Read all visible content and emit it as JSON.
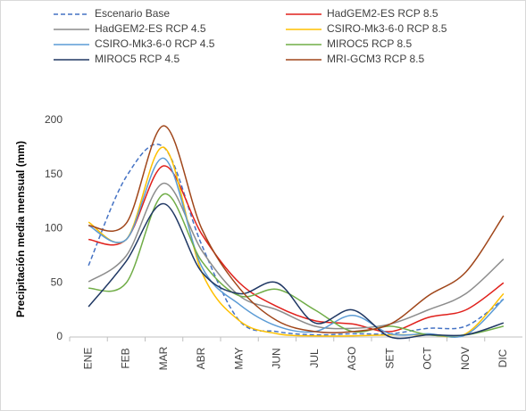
{
  "chart_data": {
    "type": "line",
    "y_label": "Precipitación media mensual (mm)",
    "categories": [
      "ENE",
      "FEB",
      "MAR",
      "ABR",
      "MAY",
      "JUN",
      "JUL",
      "AGO",
      "SET",
      "OCT",
      "NOV",
      "DIC"
    ],
    "ylim": [
      0,
      200
    ],
    "yticks": [
      0,
      50,
      100,
      150,
      200
    ],
    "grid": false,
    "legend": "top",
    "smooth": true,
    "series": [
      {
        "name": "Escenario Base",
        "color": "#4472c4",
        "dashed": true,
        "values": [
          66,
          148,
          175,
          85,
          15,
          5,
          2,
          3,
          3,
          8,
          10,
          35
        ]
      },
      {
        "name": "HadGEM2-ES RCP 8.5",
        "color": "#e0201b",
        "values": [
          90,
          90,
          158,
          95,
          50,
          28,
          15,
          12,
          5,
          18,
          25,
          50
        ]
      },
      {
        "name": "HadGEM2-ES RCP 4.5",
        "color": "#8c8c8c",
        "values": [
          51,
          75,
          142,
          80,
          38,
          25,
          10,
          8,
          12,
          25,
          40,
          72
        ]
      },
      {
        "name": "CSIRO-Mk3-6-0 RCP 8.5",
        "color": "#ffc000",
        "values": [
          106,
          90,
          175,
          60,
          15,
          3,
          1,
          1,
          2,
          2,
          3,
          40
        ]
      },
      {
        "name": "CSIRO-Mk3-6-0 RCP 4.5",
        "color": "#5b9bd5",
        "values": [
          103,
          90,
          165,
          65,
          30,
          10,
          5,
          20,
          3,
          3,
          2,
          35
        ]
      },
      {
        "name": "MIROC5 RCP 8.5",
        "color": "#70ad47",
        "values": [
          45,
          50,
          132,
          70,
          38,
          44,
          25,
          5,
          10,
          2,
          2,
          10
        ]
      },
      {
        "name": "MIROC5 RCP 4.5",
        "color": "#203864",
        "values": [
          28,
          70,
          123,
          60,
          40,
          50,
          13,
          25,
          0,
          2,
          2,
          13
        ]
      },
      {
        "name": "MRI-GCM3 RCP 8.5",
        "color": "#a0461a",
        "values": [
          103,
          105,
          195,
          100,
          45,
          15,
          5,
          5,
          12,
          38,
          60,
          112
        ]
      }
    ]
  }
}
